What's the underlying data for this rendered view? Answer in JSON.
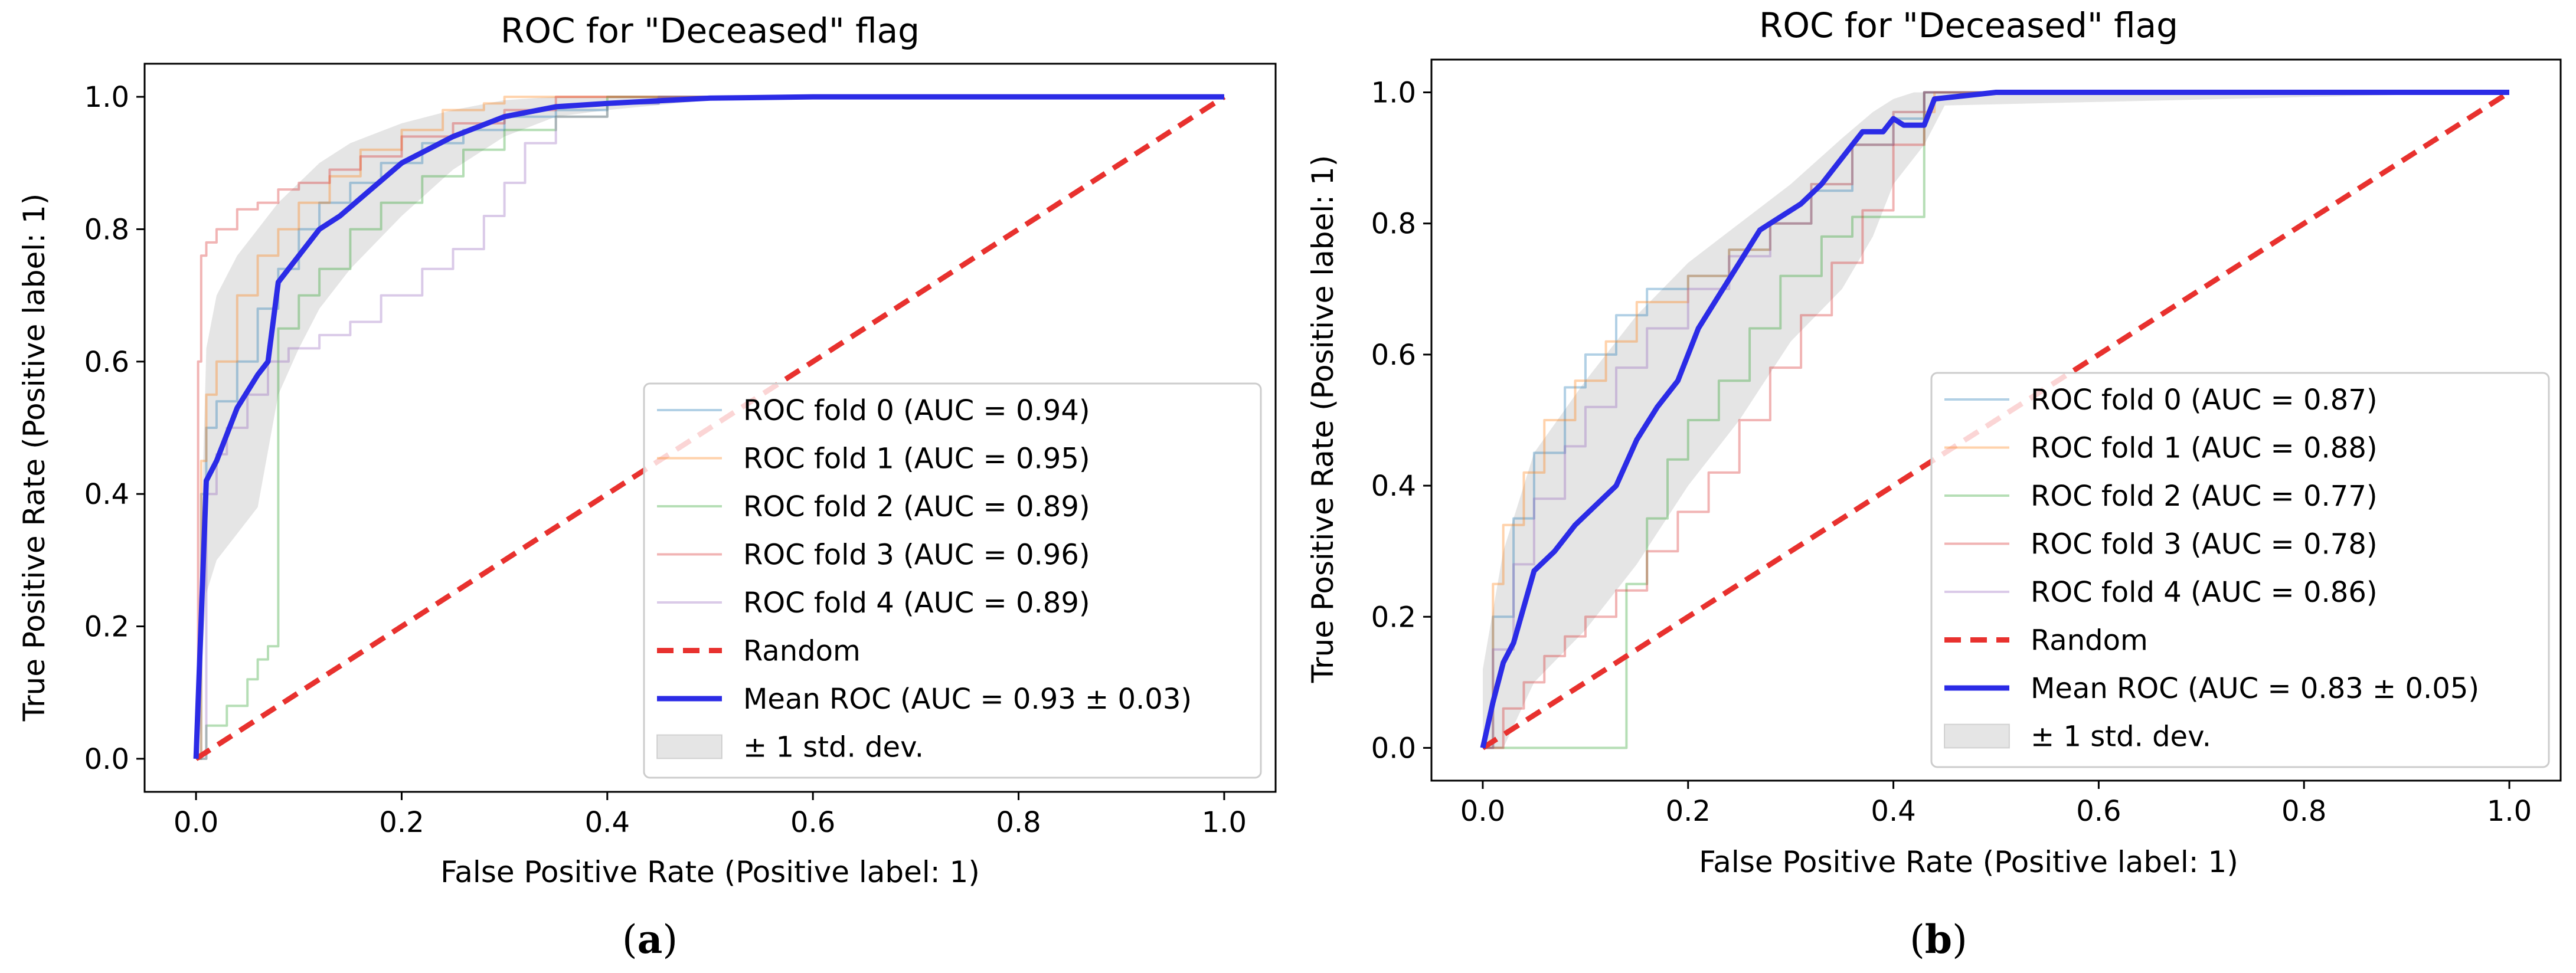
{
  "chart_data": [
    {
      "type": "line",
      "id": "a",
      "caption_letter": "a",
      "caption_open": "(",
      "caption_close": ")",
      "title": "ROC for \"Deceased\" flag",
      "xlabel": "False Positive Rate (Positive label: 1)",
      "ylabel": "True Positive Rate (Positive label: 1)",
      "xlim": [
        -0.05,
        1.05
      ],
      "ylim": [
        -0.05,
        1.05
      ],
      "xticks": [
        {
          "value": 0.0,
          "label": "0.0"
        },
        {
          "value": 0.2,
          "label": "0.2"
        },
        {
          "value": 0.4,
          "label": "0.4"
        },
        {
          "value": 0.6,
          "label": "0.6"
        },
        {
          "value": 0.8,
          "label": "0.8"
        },
        {
          "value": 1.0,
          "label": "1.0"
        }
      ],
      "yticks": [
        {
          "value": 0.0,
          "label": "0.0"
        },
        {
          "value": 0.2,
          "label": "0.2"
        },
        {
          "value": 0.4,
          "label": "0.4"
        },
        {
          "value": 0.6,
          "label": "0.6"
        },
        {
          "value": 0.8,
          "label": "0.8"
        },
        {
          "value": 1.0,
          "label": "1.0"
        }
      ],
      "legend_position": "lower-right",
      "series": [
        {
          "name": "ROC fold 0 (AUC = 0.94)",
          "color": "#1f77b4",
          "style": "step",
          "alpha": 0.35,
          "x": [
            0,
            0.005,
            0.01,
            0.02,
            0.04,
            0.06,
            0.08,
            0.1,
            0.12,
            0.15,
            0.18,
            0.22,
            0.26,
            0.3,
            0.35,
            0.4,
            0.45,
            1.0
          ],
          "y": [
            0,
            0.4,
            0.5,
            0.54,
            0.6,
            0.68,
            0.74,
            0.8,
            0.84,
            0.87,
            0.9,
            0.93,
            0.95,
            0.97,
            0.98,
            0.99,
            1.0,
            1.0
          ]
        },
        {
          "name": "ROC fold 1 (AUC = 0.95)",
          "color": "#ff7f0e",
          "style": "step",
          "alpha": 0.35,
          "x": [
            0,
            0.005,
            0.01,
            0.02,
            0.04,
            0.06,
            0.08,
            0.1,
            0.13,
            0.16,
            0.2,
            0.24,
            0.28,
            0.3,
            1.0
          ],
          "y": [
            0,
            0.45,
            0.55,
            0.6,
            0.7,
            0.76,
            0.8,
            0.84,
            0.88,
            0.92,
            0.95,
            0.98,
            0.99,
            1.0,
            1.0
          ]
        },
        {
          "name": "ROC fold 2 (AUC = 0.89)",
          "color": "#2ca02c",
          "style": "step",
          "alpha": 0.35,
          "x": [
            0,
            0.01,
            0.03,
            0.05,
            0.06,
            0.07,
            0.08,
            0.1,
            0.12,
            0.15,
            0.18,
            0.22,
            0.26,
            0.3,
            0.35,
            0.4,
            1.0
          ],
          "y": [
            0,
            0.05,
            0.08,
            0.12,
            0.15,
            0.17,
            0.65,
            0.7,
            0.74,
            0.8,
            0.84,
            0.88,
            0.92,
            0.95,
            0.97,
            1.0,
            1.0
          ]
        },
        {
          "name": "ROC fold 3 (AUC = 0.96)",
          "color": "#d62728",
          "style": "step",
          "alpha": 0.35,
          "x": [
            0,
            0.002,
            0.005,
            0.01,
            0.02,
            0.04,
            0.06,
            0.08,
            0.1,
            0.13,
            0.16,
            0.2,
            0.25,
            0.3,
            0.35,
            1.0
          ],
          "y": [
            0,
            0.6,
            0.76,
            0.78,
            0.8,
            0.83,
            0.84,
            0.86,
            0.87,
            0.89,
            0.91,
            0.94,
            0.96,
            0.98,
            1.0,
            1.0
          ]
        },
        {
          "name": "ROC fold 4 (AUC = 0.89)",
          "color": "#9467bd",
          "style": "step",
          "alpha": 0.35,
          "x": [
            0,
            0.01,
            0.02,
            0.03,
            0.05,
            0.07,
            0.09,
            0.12,
            0.15,
            0.18,
            0.22,
            0.25,
            0.28,
            0.3,
            0.32,
            0.35,
            0.4,
            0.45,
            1.0
          ],
          "y": [
            0,
            0.4,
            0.46,
            0.5,
            0.55,
            0.6,
            0.62,
            0.64,
            0.66,
            0.7,
            0.74,
            0.77,
            0.82,
            0.87,
            0.93,
            0.97,
            0.99,
            1.0,
            1.0
          ]
        },
        {
          "name": "Random",
          "color": "#e8312e",
          "style": "dashed",
          "x": [
            0,
            1
          ],
          "y": [
            0,
            1
          ]
        },
        {
          "name": "Mean ROC (AUC = 0.93 ± 0.03)",
          "color": "#2b2be6",
          "style": "solid",
          "x": [
            0,
            0.01,
            0.02,
            0.04,
            0.06,
            0.07,
            0.08,
            0.1,
            0.12,
            0.14,
            0.17,
            0.2,
            0.25,
            0.3,
            0.35,
            0.4,
            0.5,
            0.6,
            1.0
          ],
          "y": [
            0,
            0.42,
            0.45,
            0.53,
            0.58,
            0.6,
            0.72,
            0.76,
            0.8,
            0.82,
            0.86,
            0.9,
            0.94,
            0.97,
            0.985,
            0.99,
            0.998,
            1.0,
            1.0
          ]
        }
      ],
      "std_band": {
        "name": "± 1 std. dev.",
        "color": "#999999",
        "x": [
          0,
          0.01,
          0.02,
          0.04,
          0.06,
          0.08,
          0.1,
          0.12,
          0.15,
          0.2,
          0.25,
          0.3,
          0.35,
          0.4,
          0.5,
          1.0
        ],
        "upper": [
          0.05,
          0.62,
          0.7,
          0.76,
          0.8,
          0.84,
          0.87,
          0.9,
          0.93,
          0.96,
          0.98,
          0.995,
          1.0,
          1.0,
          1.0,
          1.0
        ],
        "lower": [
          0,
          0.25,
          0.3,
          0.34,
          0.38,
          0.55,
          0.62,
          0.68,
          0.74,
          0.82,
          0.89,
          0.94,
          0.97,
          0.98,
          0.995,
          1.0
        ]
      }
    },
    {
      "type": "line",
      "id": "b",
      "caption_letter": "b",
      "caption_open": "(",
      "caption_close": ")",
      "title": "ROC for \"Deceased\" flag",
      "xlabel": "False Positive Rate (Positive label: 1)",
      "ylabel": "True Positive Rate (Positive label: 1)",
      "xlim": [
        -0.05,
        1.05
      ],
      "ylim": [
        -0.05,
        1.05
      ],
      "xticks": [
        {
          "value": 0.0,
          "label": "0.0"
        },
        {
          "value": 0.2,
          "label": "0.2"
        },
        {
          "value": 0.4,
          "label": "0.4"
        },
        {
          "value": 0.6,
          "label": "0.6"
        },
        {
          "value": 0.8,
          "label": "0.8"
        },
        {
          "value": 1.0,
          "label": "1.0"
        }
      ],
      "yticks": [
        {
          "value": 0.0,
          "label": "0.0"
        },
        {
          "value": 0.2,
          "label": "0.2"
        },
        {
          "value": 0.4,
          "label": "0.4"
        },
        {
          "value": 0.6,
          "label": "0.6"
        },
        {
          "value": 0.8,
          "label": "0.8"
        },
        {
          "value": 1.0,
          "label": "1.0"
        }
      ],
      "legend_position": "lower-right",
      "series": [
        {
          "name": "ROC fold 0 (AUC = 0.87)",
          "color": "#1f77b4",
          "style": "step",
          "alpha": 0.35,
          "x": [
            0,
            0.01,
            0.03,
            0.05,
            0.08,
            0.1,
            0.13,
            0.16,
            0.2,
            0.24,
            0.28,
            0.32,
            0.36,
            0.4,
            0.43,
            1.0
          ],
          "y": [
            0,
            0.2,
            0.35,
            0.45,
            0.55,
            0.6,
            0.66,
            0.7,
            0.72,
            0.76,
            0.8,
            0.85,
            0.92,
            0.96,
            1.0,
            1.0
          ]
        },
        {
          "name": "ROC fold 1 (AUC = 0.88)",
          "color": "#ff7f0e",
          "style": "step",
          "alpha": 0.35,
          "x": [
            0,
            0.01,
            0.02,
            0.04,
            0.06,
            0.09,
            0.12,
            0.15,
            0.2,
            0.24,
            0.28,
            0.32,
            0.36,
            0.4,
            0.44,
            1.0
          ],
          "y": [
            0,
            0.25,
            0.34,
            0.42,
            0.5,
            0.56,
            0.62,
            0.68,
            0.72,
            0.76,
            0.8,
            0.86,
            0.92,
            0.97,
            1.0,
            1.0
          ]
        },
        {
          "name": "ROC fold 2 (AUC = 0.77)",
          "color": "#2ca02c",
          "style": "step",
          "alpha": 0.35,
          "x": [
            0,
            0.13,
            0.14,
            0.16,
            0.18,
            0.2,
            0.23,
            0.26,
            0.29,
            0.33,
            0.36,
            0.4,
            0.43,
            1.0
          ],
          "y": [
            0,
            0.0,
            0.25,
            0.35,
            0.44,
            0.5,
            0.56,
            0.64,
            0.72,
            0.78,
            0.81,
            0.81,
            1.0,
            1.0
          ]
        },
        {
          "name": "ROC fold 3 (AUC = 0.78)",
          "color": "#d62728",
          "style": "step",
          "alpha": 0.35,
          "x": [
            0,
            0.02,
            0.04,
            0.06,
            0.08,
            0.1,
            0.13,
            0.16,
            0.19,
            0.22,
            0.25,
            0.28,
            0.31,
            0.34,
            0.37,
            0.4,
            0.43,
            1.0
          ],
          "y": [
            0,
            0.06,
            0.1,
            0.14,
            0.17,
            0.2,
            0.24,
            0.3,
            0.36,
            0.42,
            0.5,
            0.58,
            0.66,
            0.74,
            0.82,
            0.92,
            1.0,
            1.0
          ]
        },
        {
          "name": "ROC fold 4 (AUC = 0.86)",
          "color": "#9467bd",
          "style": "step",
          "alpha": 0.35,
          "x": [
            0,
            0.01,
            0.03,
            0.05,
            0.08,
            0.1,
            0.13,
            0.16,
            0.2,
            0.24,
            0.28,
            0.32,
            0.36,
            0.4,
            0.43,
            1.0
          ],
          "y": [
            0,
            0.15,
            0.28,
            0.38,
            0.46,
            0.52,
            0.58,
            0.64,
            0.7,
            0.75,
            0.8,
            0.86,
            0.92,
            0.97,
            1.0,
            1.0
          ]
        },
        {
          "name": "Random",
          "color": "#e8312e",
          "style": "dashed",
          "x": [
            0,
            1
          ],
          "y": [
            0,
            1
          ]
        },
        {
          "name": "Mean ROC (AUC = 0.83 ± 0.05)",
          "color": "#2b2be6",
          "style": "solid",
          "x": [
            0,
            0.01,
            0.02,
            0.03,
            0.05,
            0.07,
            0.09,
            0.11,
            0.13,
            0.15,
            0.17,
            0.19,
            0.21,
            0.23,
            0.25,
            0.27,
            0.29,
            0.31,
            0.33,
            0.35,
            0.37,
            0.39,
            0.4,
            0.41,
            0.43,
            0.44,
            0.5,
            1.0
          ],
          "y": [
            0,
            0.07,
            0.13,
            0.16,
            0.27,
            0.3,
            0.34,
            0.37,
            0.4,
            0.47,
            0.52,
            0.56,
            0.64,
            0.69,
            0.74,
            0.79,
            0.81,
            0.83,
            0.86,
            0.9,
            0.94,
            0.94,
            0.96,
            0.95,
            0.95,
            0.99,
            1.0,
            1.0
          ]
        }
      ],
      "std_band": {
        "name": "± 1 std. dev.",
        "color": "#999999",
        "x": [
          0,
          0.02,
          0.05,
          0.1,
          0.15,
          0.2,
          0.25,
          0.3,
          0.35,
          0.38,
          0.4,
          0.42,
          0.43,
          0.45,
          1.0
        ],
        "upper": [
          0.12,
          0.3,
          0.45,
          0.56,
          0.66,
          0.74,
          0.8,
          0.86,
          0.93,
          0.97,
          0.99,
          1.0,
          1.0,
          1.0,
          1.0
        ],
        "lower": [
          0,
          0.0,
          0.1,
          0.18,
          0.28,
          0.4,
          0.5,
          0.62,
          0.7,
          0.78,
          0.86,
          0.9,
          0.92,
          0.98,
          1.0
        ]
      }
    }
  ]
}
